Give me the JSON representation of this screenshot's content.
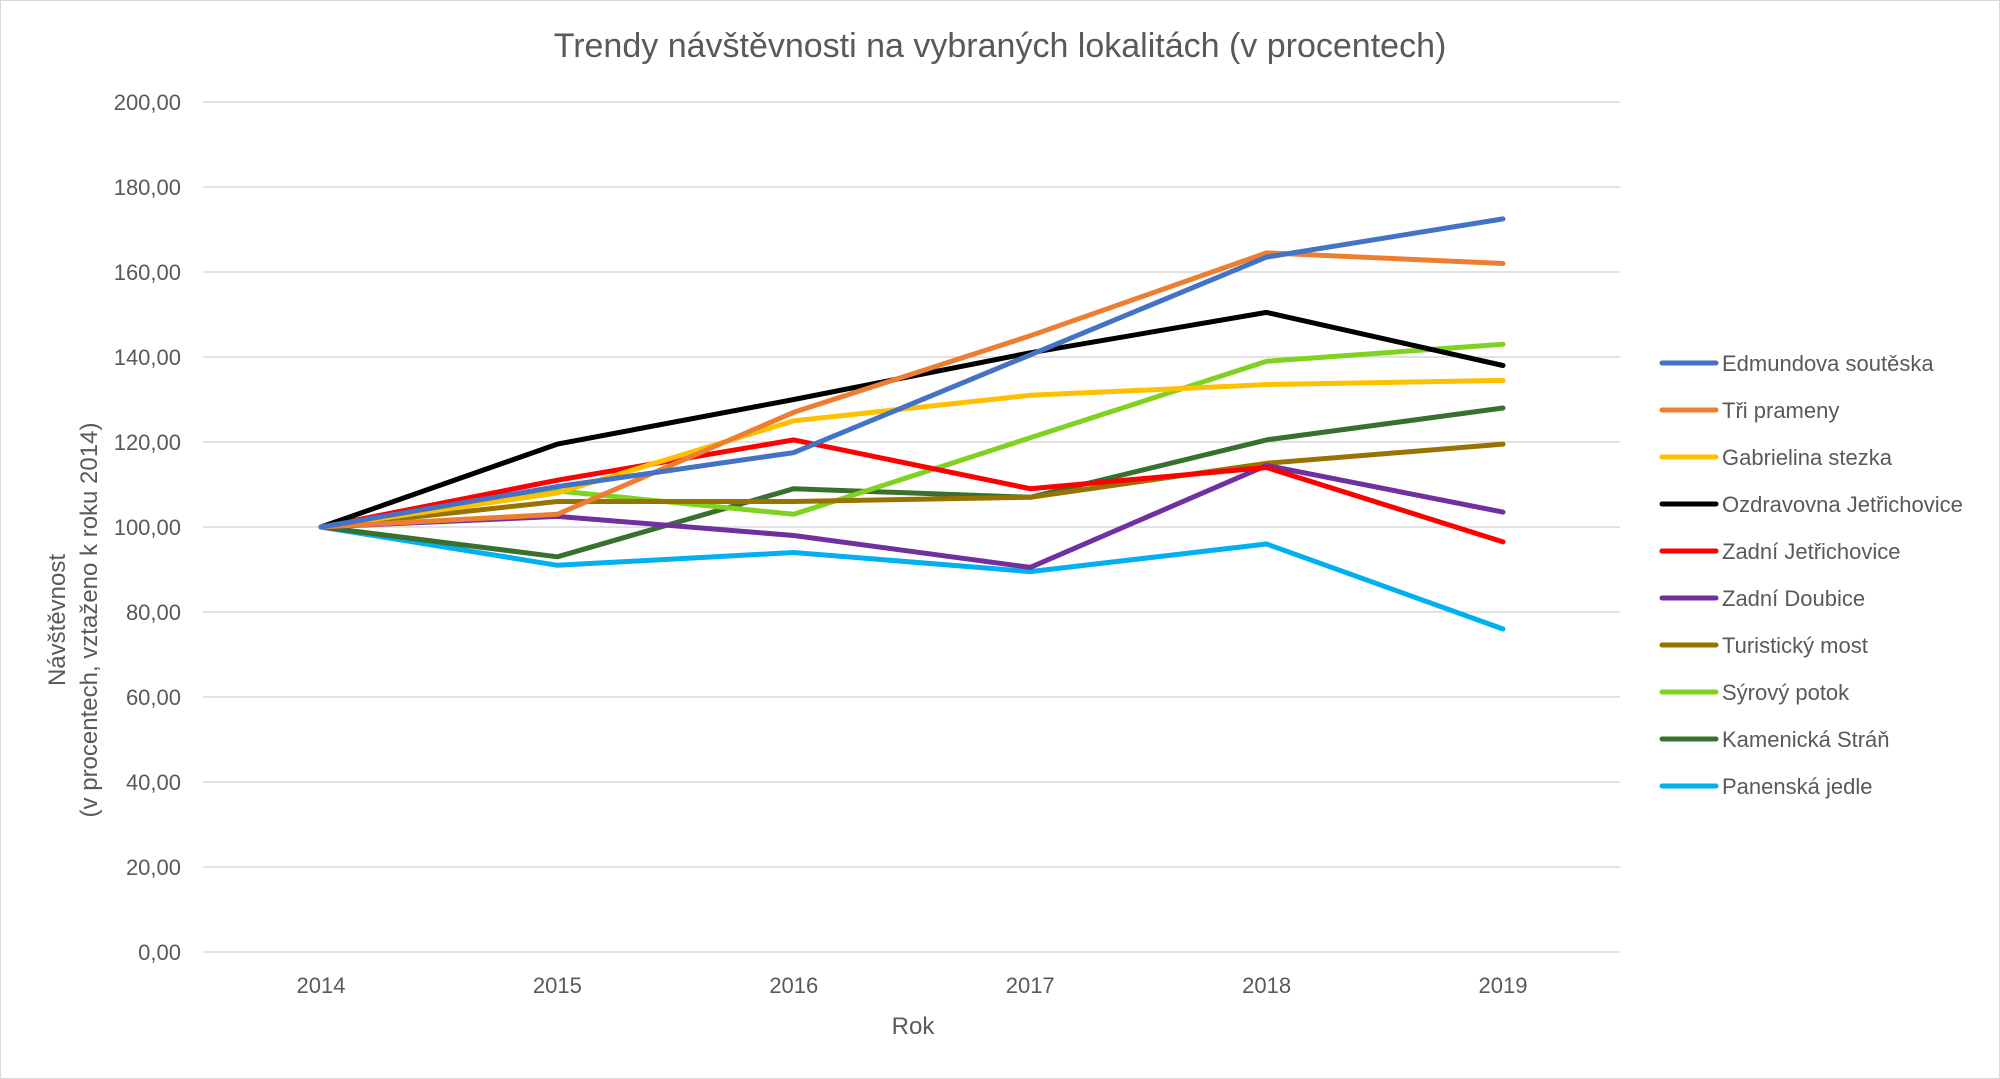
{
  "chart_data": {
    "type": "line",
    "title": "Trendy návštěvnosti na vybraných lokalitách (v procentech)",
    "xlabel": "Rok",
    "ylabel_line1": "Návštěvnost",
    "ylabel_line2": "(v procentech, vztaženo k roku 2014)",
    "categories": [
      "2014",
      "2015",
      "2016",
      "2017",
      "2018",
      "2019"
    ],
    "ylim": [
      0,
      200
    ],
    "ytick_step": 20,
    "ytick_labels": [
      "0,00",
      "20,00",
      "40,00",
      "60,00",
      "80,00",
      "100,00",
      "120,00",
      "140,00",
      "160,00",
      "180,00",
      "200,00"
    ],
    "grid": true,
    "legend_position": "right",
    "series": [
      {
        "name": "Edmundova soutěska",
        "color": "#4472C4",
        "values": [
          100,
          109.5,
          117.5,
          140.5,
          163.5,
          172.5
        ]
      },
      {
        "name": "Tři prameny",
        "color": "#ED7D31",
        "values": [
          100,
          103,
          127,
          145,
          164.5,
          162
        ]
      },
      {
        "name": "Gabrielina stezka",
        "color": "#FFC000",
        "values": [
          100,
          108,
          125,
          131,
          133.5,
          134.5
        ]
      },
      {
        "name": "Ozdravovna Jetřichovice",
        "color": "#000000",
        "values": [
          100,
          119.5,
          130,
          141,
          150.5,
          138
        ]
      },
      {
        "name": "Zadní Jetřichovice",
        "color": "#FF0000",
        "values": [
          100,
          111,
          120.5,
          109,
          114,
          96.5
        ]
      },
      {
        "name": "Zadní Doubice",
        "color": "#7030A0",
        "values": [
          100,
          102.5,
          98,
          90.5,
          114.5,
          103.5
        ]
      },
      {
        "name": "Turistický most",
        "color": "#997300",
        "values": [
          100,
          106,
          106,
          107,
          115,
          119.5
        ]
      },
      {
        "name": "Sýrový potok",
        "color": "#7FD320",
        "values": [
          100,
          108.5,
          103,
          121,
          139,
          143
        ]
      },
      {
        "name": "Kamenická Stráň",
        "color": "#38712F",
        "values": [
          100,
          93,
          109,
          107,
          120.5,
          128
        ]
      },
      {
        "name": "Panenská jedle",
        "color": "#00B0F0",
        "values": [
          100,
          91,
          94,
          89.5,
          96,
          76
        ]
      }
    ]
  }
}
